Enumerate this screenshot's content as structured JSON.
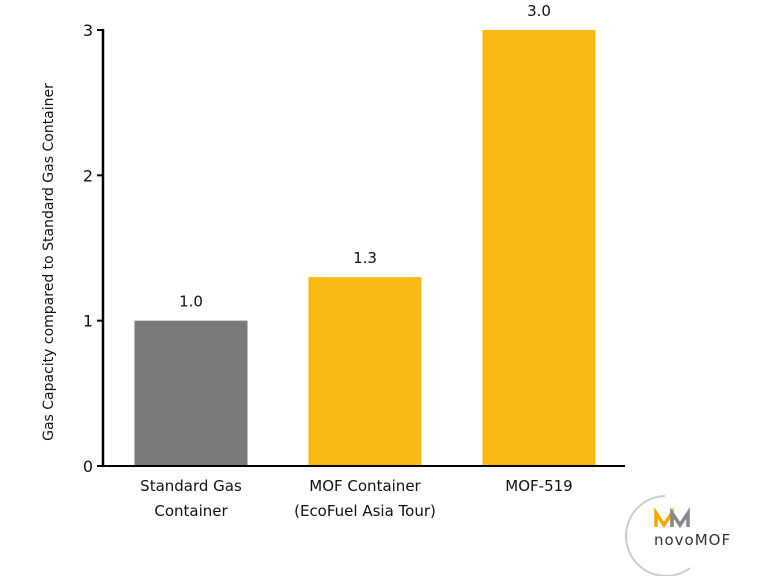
{
  "chart_data": {
    "type": "bar",
    "title": "",
    "xlabel": "",
    "ylabel": "Gas Capacity compared to Standard Gas Container",
    "categories": [
      [
        "Standard Gas",
        "Container"
      ],
      [
        "MOF Container",
        "(EcoFuel Asia Tour)"
      ],
      [
        "MOF-519"
      ]
    ],
    "values": [
      1.0,
      1.3,
      3.0
    ],
    "data_labels": [
      "1.0",
      "1.3",
      "3.0"
    ],
    "colors": [
      "#7a7a7a",
      "#fbb914",
      "#fbb914"
    ],
    "ylim": [
      0,
      3
    ],
    "yticks": [
      0,
      1,
      2,
      3
    ],
    "grid": false
  },
  "logo": {
    "text": "novoMOF"
  }
}
